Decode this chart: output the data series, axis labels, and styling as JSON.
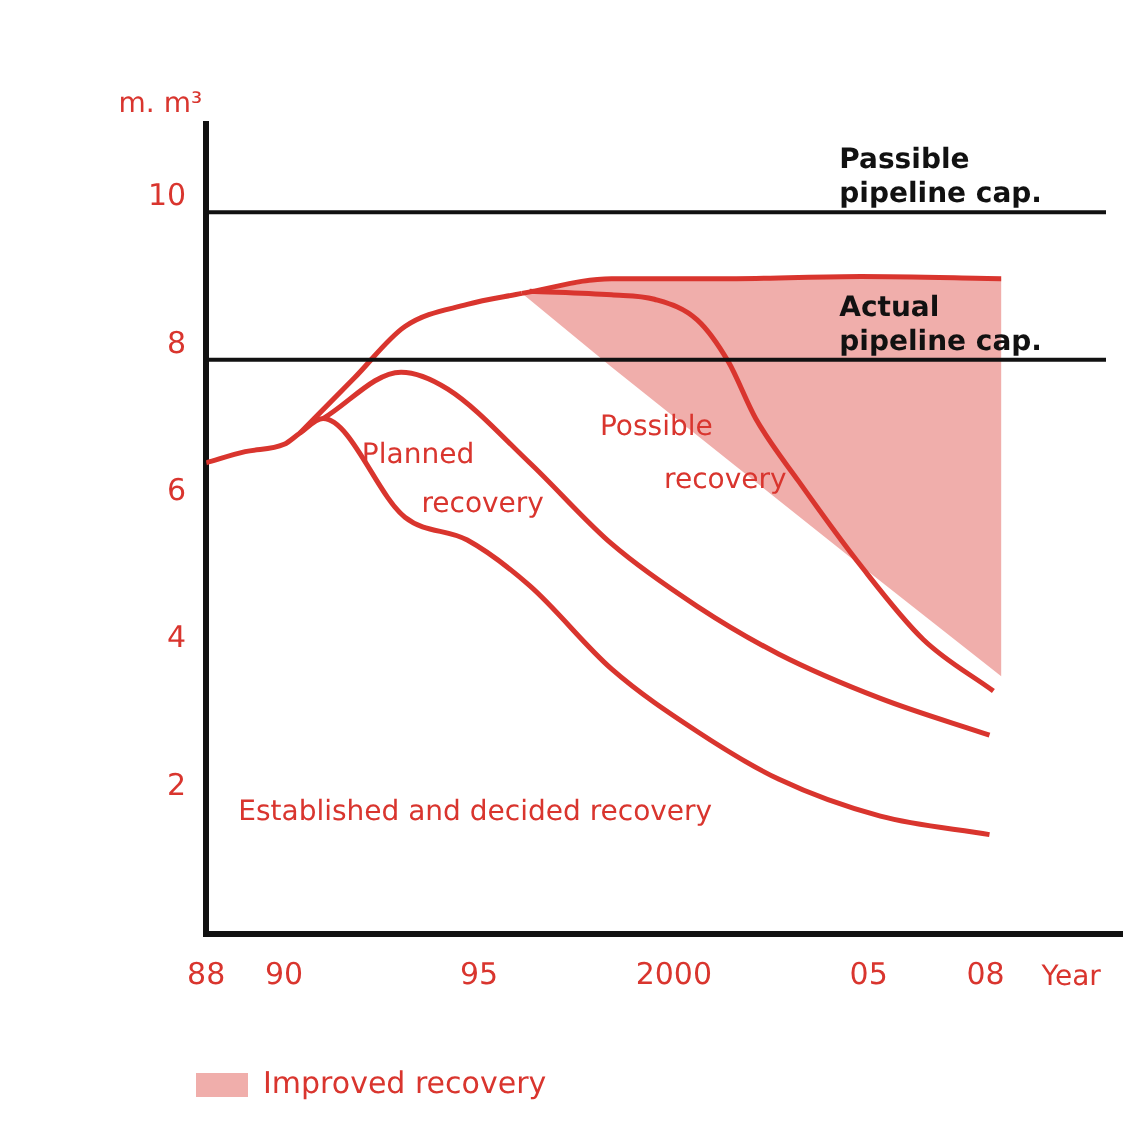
{
  "chart_data": {
    "type": "line",
    "xlabel": "Year",
    "ylabel": "m. m³",
    "xlim": [
      1988,
      2011.5
    ],
    "ylim": [
      0,
      11
    ],
    "xticks": [
      {
        "value": 1988,
        "label": "88"
      },
      {
        "value": 1990,
        "label": "90"
      },
      {
        "value": 1995,
        "label": "95"
      },
      {
        "value": 2000,
        "label": "2000"
      },
      {
        "value": 2005,
        "label": "05"
      },
      {
        "value": 2008,
        "label": "08"
      }
    ],
    "yticks": [
      2,
      4,
      6,
      8,
      10
    ],
    "series": [
      {
        "type": "line",
        "color": "#d9352e",
        "x": [
          1990.4,
          1991.8,
          1993.1,
          1994.7,
          1996.1
        ],
        "values": [
          6.8,
          7.55,
          8.25,
          8.55,
          8.7
        ]
      },
      {
        "type": "line",
        "name": "Improved recovery",
        "color": "#d9352e",
        "x": [
          1996.1,
          1998.4,
          2001.6,
          2004.8,
          2008.4
        ],
        "values": [
          8.7,
          8.9,
          8.9,
          8.93,
          8.9
        ],
        "lower": [
          8.7,
          7.7,
          6.35,
          5.0,
          3.5
        ],
        "upper": [
          8.7,
          8.9,
          8.9,
          8.93,
          8.9
        ]
      },
      {
        "type": "line",
        "name": "Possible recovery",
        "color": "#d9352e",
        "x": [
          1996.3,
          1998.4,
          1999.5,
          2000.6,
          2001.4,
          2002.1,
          2003.2,
          2004.8,
          2006.4,
          2008.2
        ],
        "values": [
          8.73,
          8.68,
          8.62,
          8.34,
          7.77,
          7.0,
          6.15,
          5.0,
          4.0,
          3.3
        ]
      },
      {
        "type": "line",
        "name": "Planned recovery",
        "color": "#d9352e",
        "x": [
          1991,
          1993,
          1994.2,
          1996.3,
          1998.4,
          2000.6,
          2002.7,
          2005.3,
          2008.1
        ],
        "values": [
          7.0,
          7.63,
          7.4,
          6.4,
          5.3,
          4.45,
          3.8,
          3.2,
          2.7
        ]
      },
      {
        "type": "line",
        "name": "Established and decided recovery",
        "color": "#d9352e",
        "x": [
          1988,
          1989,
          1990,
          1990.4,
          1991,
          1993.1,
          1994.7,
          1996.3,
          1998.4,
          2000.6,
          2002.7,
          2005.3,
          2008.1
        ],
        "values": [
          6.4,
          6.55,
          6.65,
          6.8,
          7.0,
          5.66,
          5.35,
          4.73,
          3.6,
          2.75,
          2.1,
          1.6,
          1.35
        ]
      }
    ],
    "ref_lines": [
      {
        "axis": "y",
        "value": 9.8,
        "label": "Passible pipeline cap.",
        "color": "#111111"
      },
      {
        "axis": "y",
        "value": 7.8,
        "label": "Actual pipeline cap.",
        "color": "#111111"
      }
    ],
    "grid": false,
    "legend": "bottom left",
    "marker": "none",
    "line_style": "solid"
  }
}
